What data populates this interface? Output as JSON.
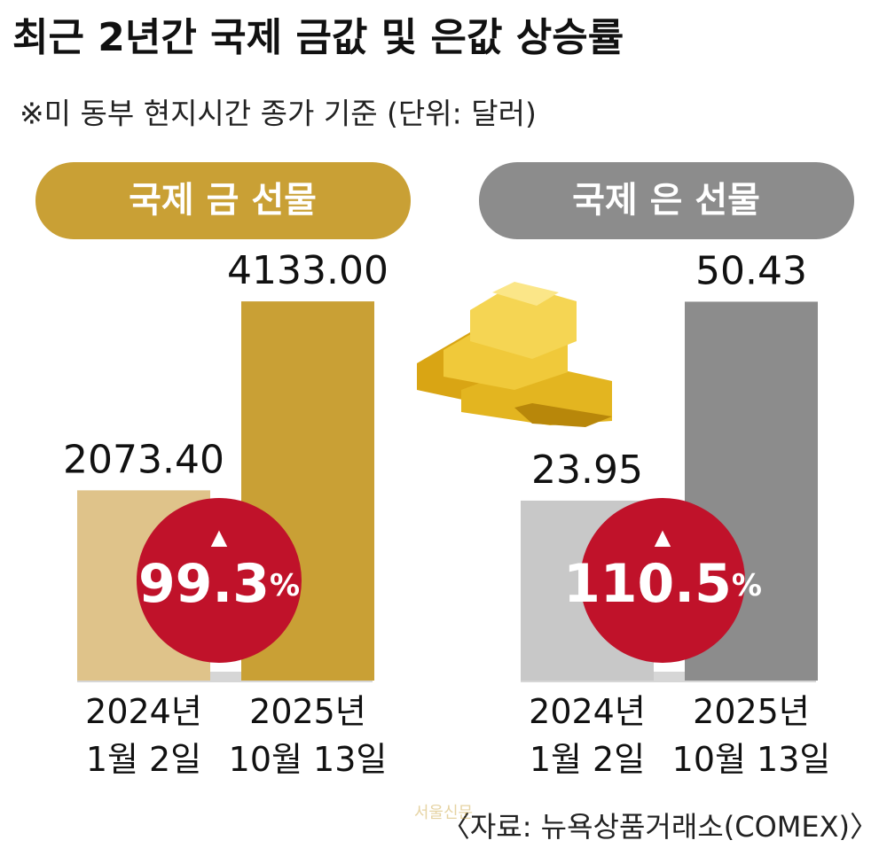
{
  "title": "최근 2년간 국제 금값 및 은값 상승률",
  "subtitle": "※미 동부 현지시간 종가 기준  (단위: 달러)",
  "source": "〈자료: 뉴욕상품거래소(COMEX)〉",
  "watermark": "서울신문",
  "chart_data": [
    {
      "type": "bar",
      "title": "국제 금 선물",
      "title_color": "#c9a035",
      "categories": [
        "2024년\n1월 2일",
        "2025년\n10월 13일"
      ],
      "values": [
        2073.4,
        4133
      ],
      "value_labels": [
        "2073.40",
        "4133.00"
      ],
      "colors": [
        "#dfc38a",
        "#c9a035"
      ],
      "ylim": [
        0,
        4250
      ],
      "badge_arrow": "▲",
      "change": 99.3,
      "change_unit": "%"
    },
    {
      "type": "bar",
      "title": "국제 은 선물",
      "title_color": "#8c8c8c",
      "categories": [
        "2024년\n1월 2일",
        "2025년\n10월 13일"
      ],
      "values": [
        23.95,
        50.43
      ],
      "colors": [
        "#c8c8c8",
        "#8c8c8c"
      ],
      "ylim": [
        0,
        51.9
      ],
      "badge_arrow": "▲",
      "change": 110.5,
      "change_unit": "%"
    }
  ]
}
